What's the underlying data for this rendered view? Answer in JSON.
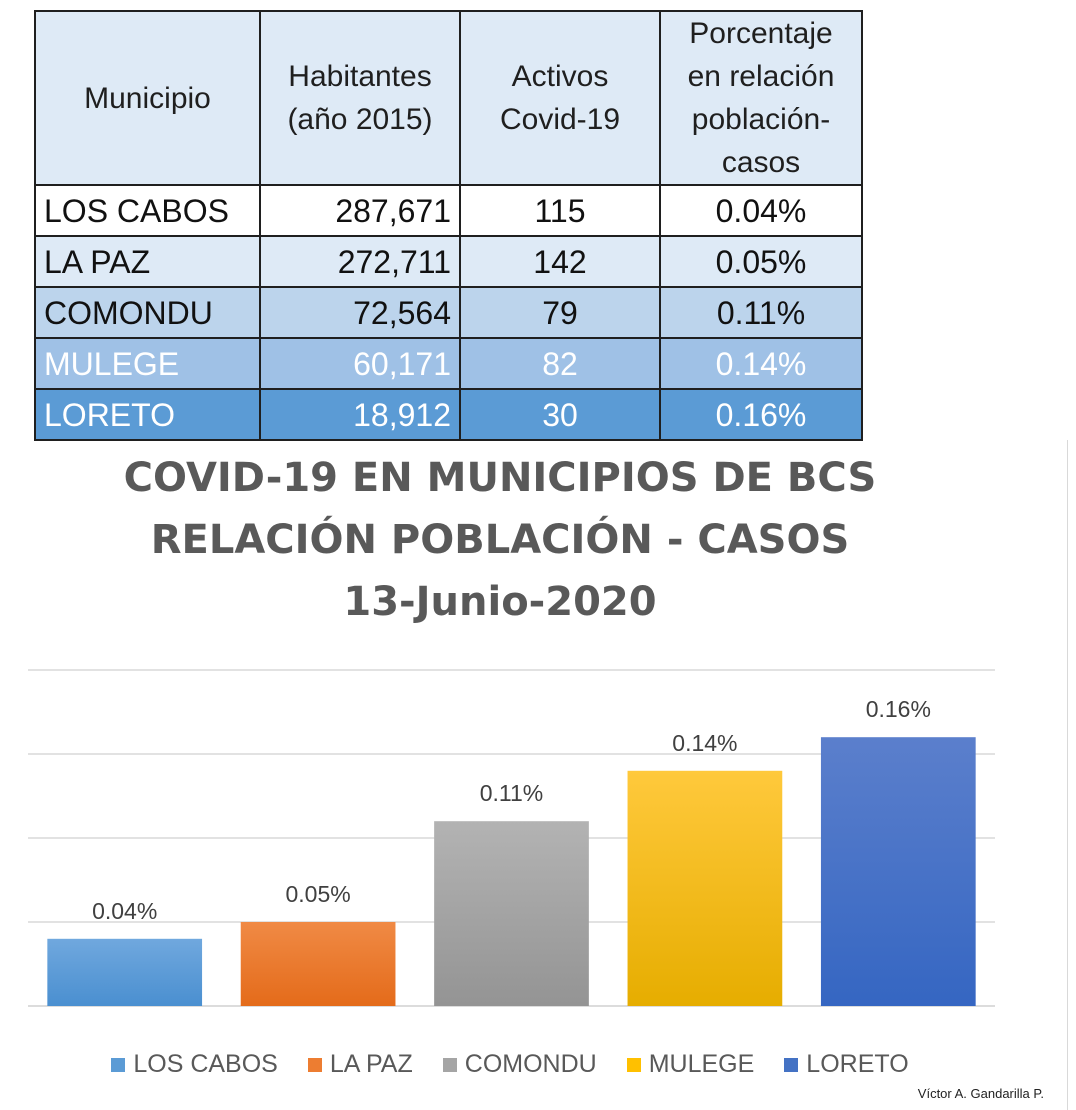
{
  "table": {
    "headers": [
      "Municipio",
      "Habitantes (año 2015)",
      "Activos Covid-19",
      "Porcentaje en relación población-casos"
    ],
    "header_lines": [
      [
        "Municipio"
      ],
      [
        "Habitantes",
        "(año 2015)"
      ],
      [
        "Activos",
        "Covid-19"
      ],
      [
        "Porcentaje",
        "en relación",
        "población-",
        "casos"
      ]
    ],
    "rows": [
      [
        "LOS CABOS",
        "287,671",
        "115",
        "0.04%"
      ],
      [
        "LA PAZ",
        "272,711",
        "142",
        "0.05%"
      ],
      [
        "COMONDU",
        "72,564",
        "79",
        "0.11%"
      ],
      [
        "MULEGE",
        "60,171",
        "82",
        "0.14%"
      ],
      [
        "LORETO",
        "18,912",
        "30",
        "0.16%"
      ]
    ]
  },
  "chart_data": {
    "type": "bar",
    "title_lines": [
      "COVID-19 EN MUNICIPIOS DE BCS",
      "RELACIÓN POBLACIÓN - CASOS",
      "13-Junio-2020"
    ],
    "categories": [
      "LOS CABOS",
      "LA PAZ",
      "COMONDU",
      "MULEGE",
      "LORETO"
    ],
    "values": [
      0.04,
      0.05,
      0.11,
      0.14,
      0.16
    ],
    "data_labels": [
      "0.04%",
      "0.05%",
      "0.11%",
      "0.14%",
      "0.16%"
    ],
    "ylim": [
      0,
      0.2
    ],
    "grid": true,
    "legend": "bottom",
    "colors": [
      "#5b9bd5",
      "#ed7d31",
      "#a5a5a5",
      "#ffc000",
      "#4472c4"
    ],
    "colors_light": [
      "#70a8de",
      "#f08a45",
      "#b3b3b3",
      "#ffc93c",
      "#5b7fcc"
    ],
    "colors_dark": [
      "#4a8fd0",
      "#e46b1a",
      "#949494",
      "#e6ad00",
      "#3566c2"
    ]
  },
  "footer": {
    "author": "Víctor A. Gandarilla P."
  }
}
